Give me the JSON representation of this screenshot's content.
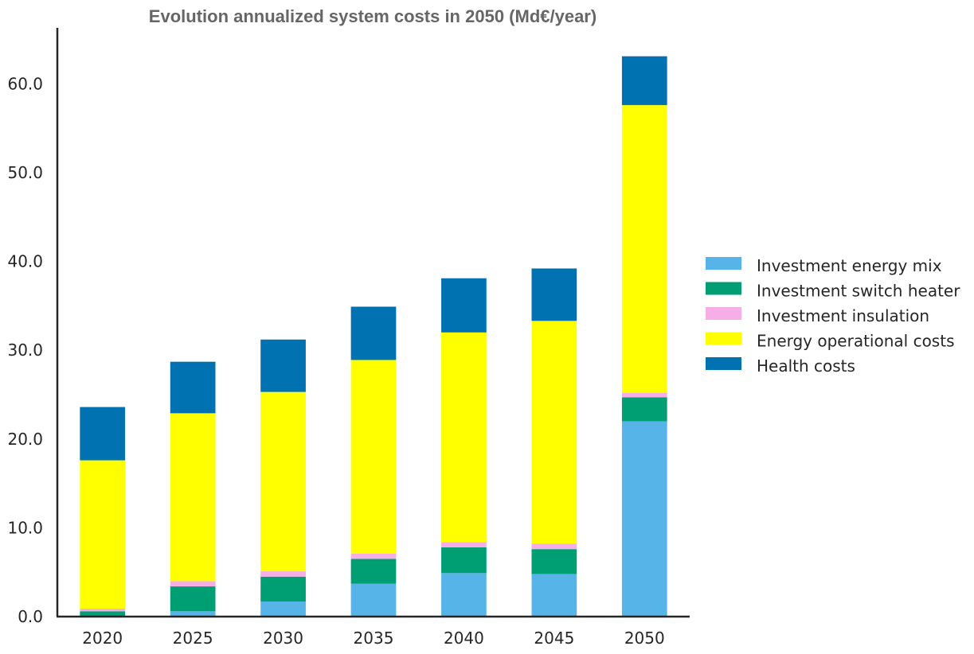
{
  "chart_data": {
    "type": "bar",
    "stacked": true,
    "title": "Evolution annualized system costs in 2050 (Md€/year)",
    "xlabel": "",
    "ylabel": "",
    "ylim": [
      0,
      66.3
    ],
    "yticks": [
      "0.0",
      "10.0",
      "20.0",
      "30.0",
      "40.0",
      "50.0",
      "60.0"
    ],
    "ytick_values": [
      0,
      10,
      20,
      30,
      40,
      50,
      60
    ],
    "categories": [
      "2020",
      "2025",
      "2030",
      "2035",
      "2040",
      "2045",
      "2050"
    ],
    "legend_position": "right",
    "grid": false,
    "series": [
      {
        "name": "Investment energy mix",
        "color": "#56b4e9",
        "values": [
          0.0,
          0.6,
          1.7,
          3.7,
          4.9,
          4.8,
          22.0
        ]
      },
      {
        "name": "Investment switch heater",
        "color": "#009e73",
        "values": [
          0.6,
          2.8,
          2.8,
          2.8,
          2.9,
          2.8,
          2.7
        ]
      },
      {
        "name": "Investment insulation",
        "color": "#f7aee6",
        "values": [
          0.3,
          0.6,
          0.6,
          0.6,
          0.6,
          0.6,
          0.5
        ]
      },
      {
        "name": "Energy operational costs",
        "color": "#ffff00",
        "values": [
          16.7,
          18.9,
          20.2,
          21.8,
          23.6,
          25.1,
          32.4
        ]
      },
      {
        "name": "Health costs",
        "color": "#0072b2",
        "values": [
          6.0,
          5.8,
          5.9,
          6.0,
          6.1,
          5.9,
          5.5
        ]
      }
    ]
  }
}
